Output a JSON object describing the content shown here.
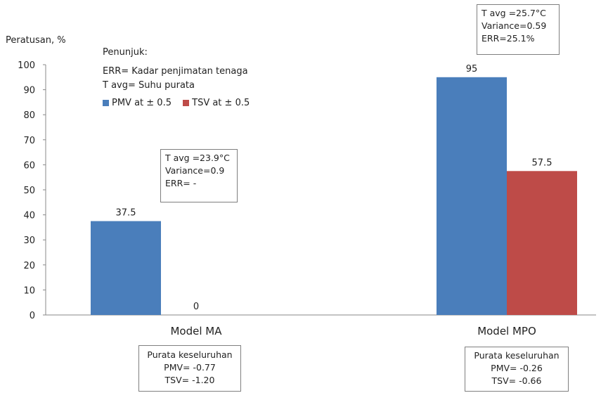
{
  "chart_data": {
    "type": "bar",
    "ylabel": "Peratusan, %",
    "ylim": [
      0,
      100
    ],
    "yticks": [
      0,
      10,
      20,
      30,
      40,
      50,
      60,
      70,
      80,
      90,
      100
    ],
    "grid": false,
    "categories": [
      "Model MA",
      "Model MPO"
    ],
    "series": [
      {
        "name": "PMV at ± 0.5",
        "color": "#4a7ebb",
        "values": [
          37.5,
          95
        ],
        "labels": [
          "37.5",
          "95"
        ]
      },
      {
        "name": "TSV at ± 0.5",
        "color": "#be4b48",
        "values": [
          0,
          57.5
        ],
        "labels": [
          "0",
          "57.5"
        ]
      }
    ],
    "legend_placement": "top-left"
  },
  "key_panel": {
    "heading": "Penunjuk:",
    "lines": [
      "ERR= Kadar penjimatan tenaga",
      "T avg= Suhu purata"
    ]
  },
  "annotations": {
    "ma_box": [
      "T avg =23.9°C",
      "Variance=0.9",
      "ERR= -"
    ],
    "mpo_box": [
      "T avg =25.7°C",
      "Variance=0.59",
      "ERR=25.1%"
    ]
  },
  "summaries": {
    "ma": [
      "Purata keseluruhan",
      "PMV= -0.77",
      "TSV= -1.20"
    ],
    "mpo": [
      "Purata keseluruhan",
      "PMV= -0.26",
      "TSV= -0.66"
    ]
  }
}
